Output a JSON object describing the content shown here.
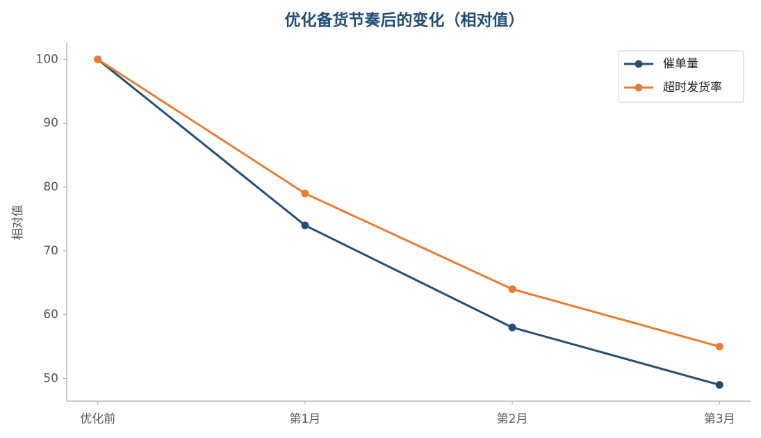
{
  "chart_data": {
    "type": "line",
    "title": "优化备货节奏后的变化（相对值）",
    "ylabel": "相对值",
    "categories": [
      "优化前",
      "第1月",
      "第2月",
      "第3月"
    ],
    "series": [
      {
        "name": "催单量",
        "color": "#1f4e79",
        "values": [
          100,
          74,
          58,
          49
        ]
      },
      {
        "name": "超时发货率",
        "color": "#e97c30",
        "values": [
          100,
          79,
          64,
          55
        ]
      }
    ],
    "ylim": [
      46.45,
      102.55
    ],
    "yticks": [
      50,
      60,
      70,
      80,
      90,
      100
    ],
    "grid": false,
    "legend": "upper right"
  }
}
